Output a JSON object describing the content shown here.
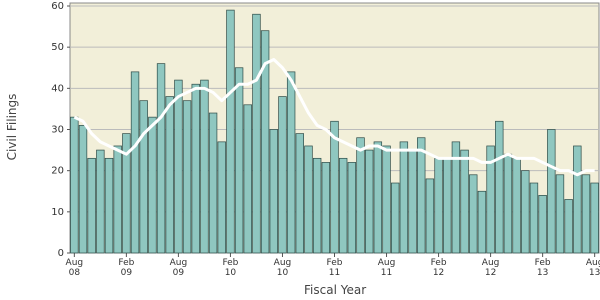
{
  "chart_data": {
    "type": "bar",
    "x_label": "Fiscal Year",
    "y_label": "Civil Filings",
    "categories": [
      "Aug 08",
      null,
      null,
      null,
      null,
      null,
      "Feb 09",
      null,
      null,
      null,
      null,
      null,
      "Aug 09",
      null,
      null,
      null,
      null,
      null,
      "Feb 10",
      null,
      null,
      null,
      null,
      null,
      "Aug 10",
      null,
      null,
      null,
      null,
      null,
      "Feb 11",
      null,
      null,
      null,
      null,
      null,
      "Aug 11",
      null,
      null,
      null,
      null,
      null,
      "Feb 12",
      null,
      null,
      null,
      null,
      null,
      "Aug 12",
      null,
      null,
      null,
      null,
      null,
      "Feb 13",
      null,
      null,
      null,
      null,
      null,
      "Aug 13"
    ],
    "series": [
      {
        "type": "bar",
        "color": "#8fc7c0",
        "values": [
          33,
          31,
          23,
          25,
          23,
          26,
          29,
          44,
          37,
          33,
          46,
          38,
          42,
          37,
          41,
          42,
          34,
          27,
          59,
          45,
          36,
          58,
          54,
          30,
          38,
          44,
          29,
          26,
          23,
          22,
          32,
          23,
          22,
          28,
          25,
          27,
          26,
          17,
          27,
          25,
          28,
          18,
          23,
          23,
          27,
          25,
          19,
          15,
          26,
          32,
          24,
          23,
          20,
          17,
          14,
          30,
          19,
          13,
          26,
          19,
          17
        ]
      },
      {
        "type": "line",
        "color": "#ffffff",
        "values": [
          33,
          32,
          29,
          27,
          26,
          25,
          24,
          26,
          29,
          31,
          33,
          36,
          38,
          39,
          40,
          40,
          39,
          37,
          39,
          41,
          41,
          42,
          46,
          47,
          45,
          42,
          38,
          34,
          31,
          30,
          28,
          27,
          26,
          25,
          26,
          26,
          25,
          25,
          25,
          25,
          25,
          24,
          23,
          23,
          23,
          23,
          23,
          22,
          22,
          23,
          24,
          23,
          23,
          23,
          22,
          21,
          20,
          20,
          19,
          20,
          20
        ]
      }
    ],
    "ylim": [
      0,
      60
    ],
    "yticks": [
      0,
      10,
      20,
      30,
      40,
      50,
      60
    ],
    "grid": true,
    "background": "#f2efd9"
  }
}
